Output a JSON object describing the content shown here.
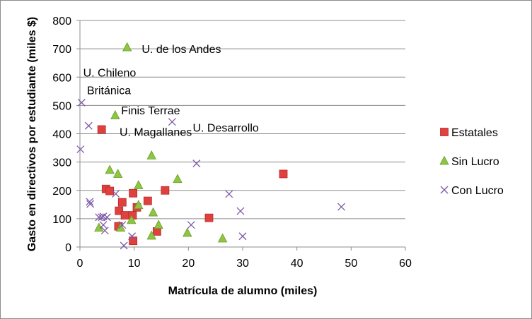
{
  "chart_data": {
    "type": "scatter",
    "title": "",
    "xlabel": "Matrícula de alumno (miles)",
    "ylabel": "Gasto en directivos  por estudiante (miles $)",
    "xlim": [
      0,
      60
    ],
    "ylim": [
      0,
      800
    ],
    "x_ticks": [
      "0",
      "10",
      "20",
      "30",
      "40",
      "50",
      "60"
    ],
    "y_ticks": [
      "0",
      "100",
      "200",
      "300",
      "400",
      "500",
      "600",
      "700",
      "800"
    ],
    "grid": "horizontal",
    "legend_position": "right",
    "series": [
      {
        "name": "Estatales",
        "marker": "square",
        "color": "#e0413f",
        "points": [
          {
            "x": 4.0,
            "y": 415
          },
          {
            "x": 4.8,
            "y": 205
          },
          {
            "x": 5.5,
            "y": 198
          },
          {
            "x": 7.2,
            "y": 128
          },
          {
            "x": 7.8,
            "y": 158
          },
          {
            "x": 8.3,
            "y": 112
          },
          {
            "x": 7.1,
            "y": 73
          },
          {
            "x": 9.8,
            "y": 190
          },
          {
            "x": 9.7,
            "y": 112
          },
          {
            "x": 10.5,
            "y": 140
          },
          {
            "x": 9.8,
            "y": 22
          },
          {
            "x": 12.5,
            "y": 163
          },
          {
            "x": 14.2,
            "y": 55
          },
          {
            "x": 15.7,
            "y": 200
          },
          {
            "x": 23.8,
            "y": 103
          },
          {
            "x": 37.5,
            "y": 258
          }
        ]
      },
      {
        "name": "Sin Lucro",
        "marker": "triangle",
        "color": "#8dc63f",
        "points": [
          {
            "x": 8.7,
            "y": 705
          },
          {
            "x": 6.5,
            "y": 465
          },
          {
            "x": 13.2,
            "y": 323
          },
          {
            "x": 5.5,
            "y": 272
          },
          {
            "x": 7.0,
            "y": 258
          },
          {
            "x": 18.0,
            "y": 240
          },
          {
            "x": 10.8,
            "y": 218
          },
          {
            "x": 10.8,
            "y": 148
          },
          {
            "x": 13.5,
            "y": 122
          },
          {
            "x": 9.5,
            "y": 95
          },
          {
            "x": 14.5,
            "y": 78
          },
          {
            "x": 3.5,
            "y": 68
          },
          {
            "x": 7.5,
            "y": 68
          },
          {
            "x": 13.2,
            "y": 40
          },
          {
            "x": 19.8,
            "y": 50
          },
          {
            "x": 26.3,
            "y": 30
          }
        ]
      },
      {
        "name": "Con Lucro",
        "marker": "x",
        "color": "#7d5ba6",
        "points": [
          {
            "x": 0.3,
            "y": 510
          },
          {
            "x": 1.6,
            "y": 428
          },
          {
            "x": 17.0,
            "y": 442
          },
          {
            "x": 0.1,
            "y": 345
          },
          {
            "x": 21.5,
            "y": 295
          },
          {
            "x": 1.8,
            "y": 160
          },
          {
            "x": 1.9,
            "y": 152
          },
          {
            "x": 6.6,
            "y": 188
          },
          {
            "x": 27.5,
            "y": 187
          },
          {
            "x": 3.5,
            "y": 105
          },
          {
            "x": 4.0,
            "y": 105
          },
          {
            "x": 4.3,
            "y": 108
          },
          {
            "x": 5.0,
            "y": 105
          },
          {
            "x": 4.3,
            "y": 78
          },
          {
            "x": 4.6,
            "y": 58
          },
          {
            "x": 7.8,
            "y": 78
          },
          {
            "x": 9.6,
            "y": 38
          },
          {
            "x": 8.1,
            "y": 5
          },
          {
            "x": 20.5,
            "y": 78
          },
          {
            "x": 29.6,
            "y": 127
          },
          {
            "x": 30.0,
            "y": 38
          },
          {
            "x": 48.2,
            "y": 142
          }
        ]
      }
    ],
    "annotations": [
      {
        "text": "U. de los Andes",
        "x": 11.4,
        "y": 700
      },
      {
        "text": "U. Chileno",
        "x": 0.6,
        "y": 617
      },
      {
        "text": "Británica",
        "x": 1.3,
        "y": 555
      },
      {
        "text": "Finis Terrae",
        "x": 7.6,
        "y": 484
      },
      {
        "text": "U. Desarrollo",
        "x": 20.8,
        "y": 423
      },
      {
        "text": "U. Magallanes",
        "x": 7.3,
        "y": 408
      }
    ]
  }
}
